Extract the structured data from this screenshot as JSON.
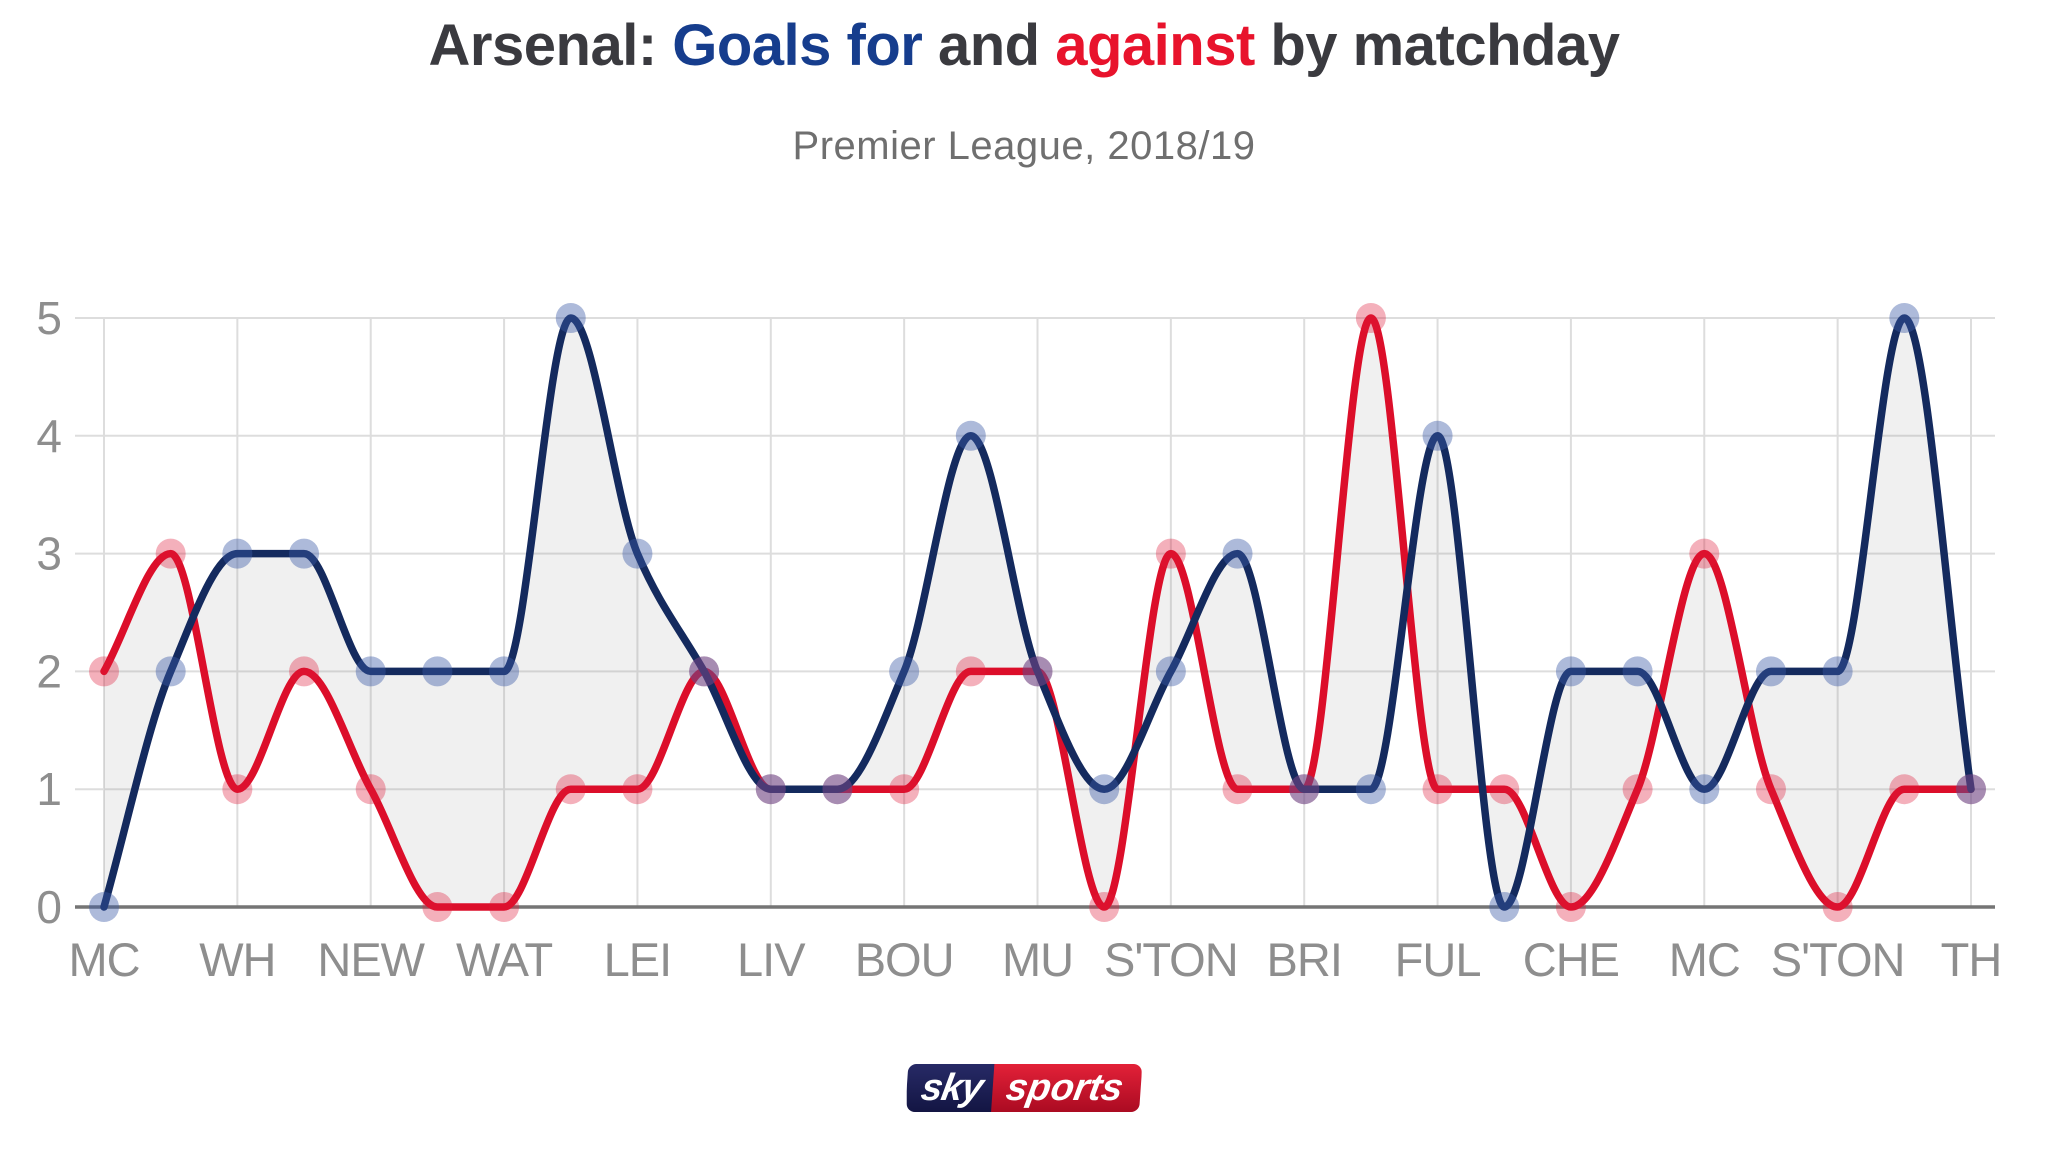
{
  "title": {
    "prefix": "Arsenal: ",
    "goals_for": "Goals for",
    "middle": " and ",
    "against": "against",
    "suffix": " by matchday"
  },
  "subtitle": "Premier League, 2018/19",
  "logo": {
    "part1": "sky",
    "part2": "sports"
  },
  "colors": {
    "title_text": "#3a3a3f",
    "title_for": "#163d8d",
    "title_against": "#e8132c",
    "subtitle": "#6f6f6f",
    "axis_label": "#8e8e8e",
    "gridline": "#dddddd",
    "axis_line": "#757575",
    "line_for": "#142a5e",
    "line_against": "#dc0e2a",
    "dot_for": "rgba(59,90,168,0.42)",
    "dot_against": "rgba(224,22,56,0.34)",
    "band_fill": "rgba(140,140,140,0.13)"
  },
  "chart_data": {
    "type": "line",
    "title": "Arsenal: Goals for and against by matchday",
    "subtitle": "Premier League, 2018/19",
    "x": [
      1,
      2,
      3,
      4,
      5,
      6,
      7,
      8,
      9,
      10,
      11,
      12,
      13,
      14,
      15,
      16,
      17,
      18,
      19,
      20,
      21,
      22,
      23,
      24,
      25,
      26,
      27,
      28,
      29
    ],
    "xlabel": "",
    "ylabel": "",
    "ylim": [
      0,
      5
    ],
    "yticks": [
      0,
      1,
      2,
      3,
      4,
      5
    ],
    "grid": true,
    "legend_position": "none",
    "curve": "monotone",
    "x_ticks": [
      {
        "matchday": 1,
        "label": "MC"
      },
      {
        "matchday": 3,
        "label": "WH"
      },
      {
        "matchday": 5,
        "label": "NEW"
      },
      {
        "matchday": 7,
        "label": "WAT"
      },
      {
        "matchday": 9,
        "label": "LEI"
      },
      {
        "matchday": 11,
        "label": "LIV"
      },
      {
        "matchday": 13,
        "label": "BOU"
      },
      {
        "matchday": 15,
        "label": "MU"
      },
      {
        "matchday": 17,
        "label": "S'TON"
      },
      {
        "matchday": 19,
        "label": "BRI"
      },
      {
        "matchday": 21,
        "label": "FUL"
      },
      {
        "matchday": 23,
        "label": "CHE"
      },
      {
        "matchday": 25,
        "label": "MC"
      },
      {
        "matchday": 27,
        "label": "S'TON"
      },
      {
        "matchday": 29,
        "label": "TH"
      }
    ],
    "series": [
      {
        "name": "Goals for",
        "values": [
          0,
          2,
          3,
          3,
          2,
          2,
          2,
          5,
          3,
          2,
          1,
          1,
          2,
          4,
          2,
          1,
          2,
          3,
          1,
          1,
          4,
          0,
          2,
          2,
          1,
          2,
          2,
          5,
          1
        ]
      },
      {
        "name": "Goals against",
        "values": [
          2,
          3,
          1,
          2,
          1,
          0,
          0,
          1,
          1,
          2,
          1,
          1,
          1,
          2,
          2,
          0,
          3,
          1,
          1,
          5,
          1,
          1,
          0,
          1,
          3,
          1,
          0,
          1,
          1
        ]
      }
    ]
  }
}
